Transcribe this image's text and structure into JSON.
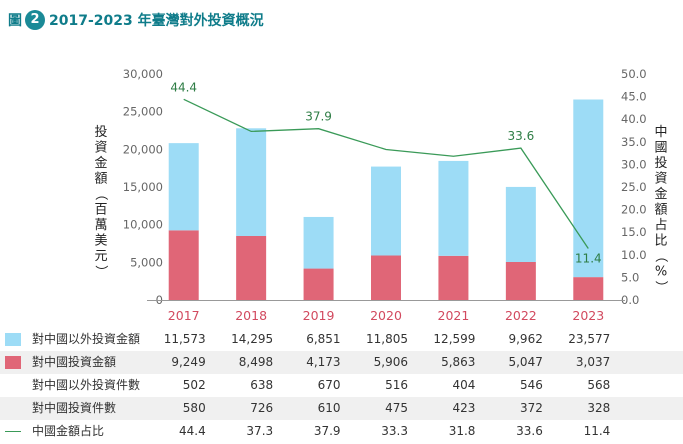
{
  "header": {
    "label": "圖",
    "number": "2",
    "title": "2017-2023 年臺灣對外投資概況"
  },
  "chart_data": {
    "type": "bar",
    "stacked": true,
    "categories": [
      "2017",
      "2018",
      "2019",
      "2020",
      "2021",
      "2022",
      "2023"
    ],
    "series": [
      {
        "name": "對中國以外投資金額",
        "type": "bar",
        "axis": "left",
        "color": "#9ddcf6",
        "values": [
          11573,
          14295,
          6851,
          11805,
          12599,
          9962,
          23577
        ]
      },
      {
        "name": "對中國投資金額",
        "type": "bar",
        "axis": "left",
        "color": "#e06677",
        "values": [
          9249,
          8498,
          4173,
          5906,
          5863,
          5047,
          3037
        ]
      },
      {
        "name": "對中國以外投資件數",
        "type": "table-only",
        "values": [
          502,
          638,
          670,
          516,
          404,
          546,
          568
        ]
      },
      {
        "name": "對中國投資件數",
        "type": "table-only",
        "values": [
          580,
          726,
          610,
          475,
          423,
          372,
          328
        ]
      },
      {
        "name": "中國金額占比",
        "type": "line",
        "axis": "right",
        "color": "#3a9a58",
        "values": [
          44.4,
          37.3,
          37.9,
          33.3,
          31.8,
          33.6,
          11.4
        ]
      }
    ],
    "line_point_labels": [
      "44.4",
      "",
      "37.9",
      "",
      "",
      "33.6",
      "11.4"
    ],
    "left_axis": {
      "label": "投資金額（百萬美元）",
      "ylim": [
        0,
        30000
      ],
      "ticks": [
        "0",
        "5,000",
        "10,000",
        "15,000",
        "20,000",
        "25,000",
        "30,000"
      ]
    },
    "right_axis": {
      "label": "中國投資金額占比（%）",
      "ylim": [
        0,
        50
      ],
      "ticks": [
        "0.0",
        "5.0",
        "10.0",
        "15.0",
        "20.0",
        "25.0",
        "30.0",
        "35.0",
        "40.0",
        "45.0",
        "50.0"
      ]
    },
    "table": {
      "rows": [
        {
          "label": "對中國以外投資金額",
          "key": "bar",
          "color": "#9ddcf6",
          "cells": [
            "11,573",
            "14,295",
            "6,851",
            "11,805",
            "12,599",
            "9,962",
            "23,577"
          ]
        },
        {
          "label": "對中國投資金額",
          "key": "bar",
          "color": "#e06677",
          "cells": [
            "9,249",
            "8,498",
            "4,173",
            "5,906",
            "5,863",
            "5,047",
            "3,037"
          ]
        },
        {
          "label": "對中國以外投資件數",
          "key": "none",
          "cells": [
            "502",
            "638",
            "670",
            "516",
            "404",
            "546",
            "568"
          ]
        },
        {
          "label": "對中國投資件數",
          "key": "none",
          "cells": [
            "580",
            "726",
            "610",
            "475",
            "423",
            "372",
            "328"
          ]
        },
        {
          "label": "中國金額占比",
          "key": "line",
          "color": "#3a9a58",
          "cells": [
            "44.4",
            "37.3",
            "37.9",
            "33.3",
            "31.8",
            "33.6",
            "11.4"
          ]
        }
      ]
    }
  }
}
